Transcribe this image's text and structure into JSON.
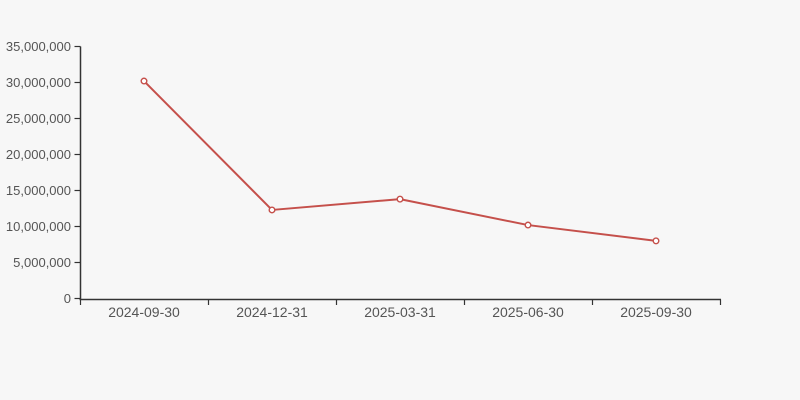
{
  "background_color": "#f7f7f7",
  "chart_data": {
    "type": "line",
    "categories": [
      "2024-09-30",
      "2024-12-31",
      "2025-03-31",
      "2025-06-30",
      "2025-09-30"
    ],
    "series": [
      {
        "name": "series-1",
        "values": [
          30200000,
          12300000,
          13800000,
          10200000,
          8000000
        ]
      }
    ],
    "ylim": [
      0,
      35000000
    ],
    "ytick_step": 5000000,
    "ytick_labels": [
      "0",
      "5,000,000",
      "10,000,000",
      "15,000,000",
      "20,000,000",
      "25,000,000",
      "30,000,000",
      "35,000,000"
    ],
    "grid": false,
    "legend": false,
    "title": "",
    "xlabel": "",
    "ylabel": "",
    "line_color": "#c5504b",
    "marker_fill": "#ffffff",
    "axis_color": "#333333",
    "label_color": "#555555"
  }
}
